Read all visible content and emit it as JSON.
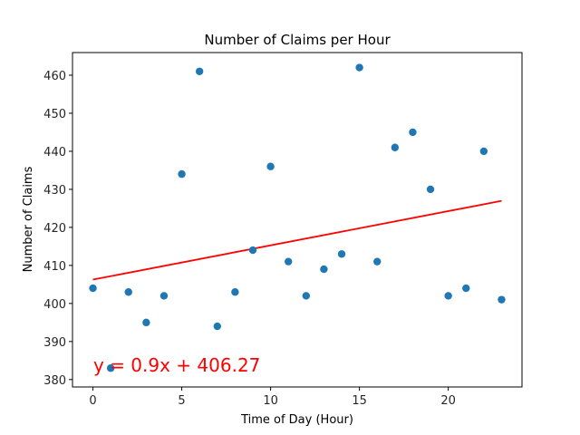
{
  "chart_data": {
    "type": "scatter",
    "title": "Number of Claims per Hour",
    "xlabel": "Time of Day (Hour)",
    "ylabel": "Number of Claims",
    "xlim": [
      -1.15,
      24.15
    ],
    "ylim": [
      378.05,
      465.95
    ],
    "xticks": [
      0,
      5,
      10,
      15,
      20
    ],
    "yticks": [
      380,
      390,
      400,
      410,
      420,
      430,
      440,
      450,
      460
    ],
    "grid": false,
    "point_color": "#1f77b4",
    "series": [
      {
        "x": [
          0,
          1,
          2,
          3,
          4,
          5,
          6,
          7,
          8,
          9,
          10,
          11,
          12,
          13,
          14,
          15,
          16,
          17,
          18,
          19,
          20,
          21,
          22,
          23
        ],
        "y": [
          404,
          383,
          403,
          395,
          402,
          434,
          461,
          394,
          403,
          414,
          436,
          411,
          402,
          409,
          413,
          462,
          411,
          441,
          445,
          430,
          402,
          404,
          440,
          401
        ]
      }
    ],
    "regression": {
      "slope": 0.9,
      "intercept": 406.27,
      "x_range": [
        0,
        23
      ],
      "color": "#ff0000",
      "label": "y = 0.9x + 406.27"
    }
  }
}
